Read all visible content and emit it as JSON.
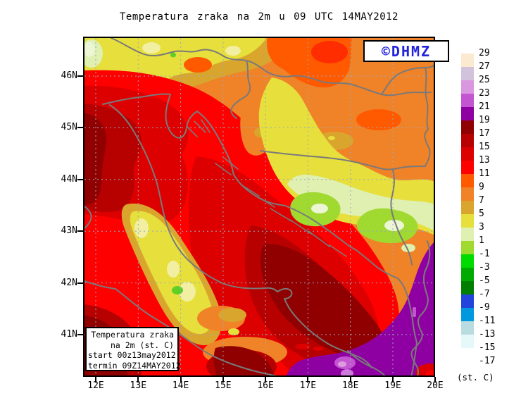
{
  "title": "Temperatura zraka na 2m u 09 UTC 14MAY2012",
  "watermark": {
    "text": "©DHMZ",
    "color": "#2222DD"
  },
  "info_box": {
    "lines": [
      "Temperatura zraka",
      "na 2m (st. C)",
      "start 00z13may2012",
      "termin 09Z14MAY2012"
    ]
  },
  "axes": {
    "lat_labels": [
      "46N",
      "45N",
      "44N",
      "43N",
      "42N",
      "41N"
    ],
    "lon_labels": [
      "12E",
      "13E",
      "14E",
      "15E",
      "16E",
      "17E",
      "18E",
      "19E",
      "20E"
    ]
  },
  "legend": {
    "unit": "(st. C)",
    "boundary_labels": [
      "29",
      "27",
      "25",
      "23",
      "21",
      "19",
      "17",
      "15",
      "13",
      "11",
      "9",
      "7",
      "5",
      "3",
      "1",
      "-1",
      "-3",
      "-5",
      "-7",
      "-9",
      "-11",
      "-13",
      "-15",
      "-17"
    ],
    "swatch_colors": [
      "#FBE9D0",
      "#D2C2DC",
      "#D897DE",
      "#C455D0",
      "#8F00A3",
      "#900000",
      "#B70000",
      "#DC0000",
      "#FF0000",
      "#FF5A00",
      "#F08228",
      "#D9A52D",
      "#E6DF3C",
      "#DFF0B0",
      "#A0D930",
      "#00DC00",
      "#00AA00",
      "#007F00",
      "#2244DD",
      "#0099DD",
      "#B8DCE0",
      "#E6F8FA",
      "#FFFFFF"
    ]
  },
  "map": {
    "frame_color": "#000000",
    "grid_color": "#9AA9BE",
    "border_color": "#7A7A7A",
    "palette": {
      "orange": "#F08228",
      "goldenrod": "#D9A52D",
      "yellow": "#E6DF3C",
      "paleYellow": "#F2EFA2",
      "paleGreen": "#DFF0B0",
      "creamGreen": "#ECF6D4",
      "yellowGreen": "#A0D930",
      "green": "#5FCE27",
      "orangeRed": "#FF5A00",
      "deepOrangeRed": "#FF2D00",
      "vividRed": "#FF0000",
      "red": "#DC0000",
      "darkRed": "#B70000",
      "maroon": "#900000",
      "purple": "#8F00A3",
      "orchid": "#C455D0",
      "lightOrchid": "#D897DE",
      "paleLilac": "#DE9BE2",
      "medLilac": "#CE79DC"
    }
  }
}
